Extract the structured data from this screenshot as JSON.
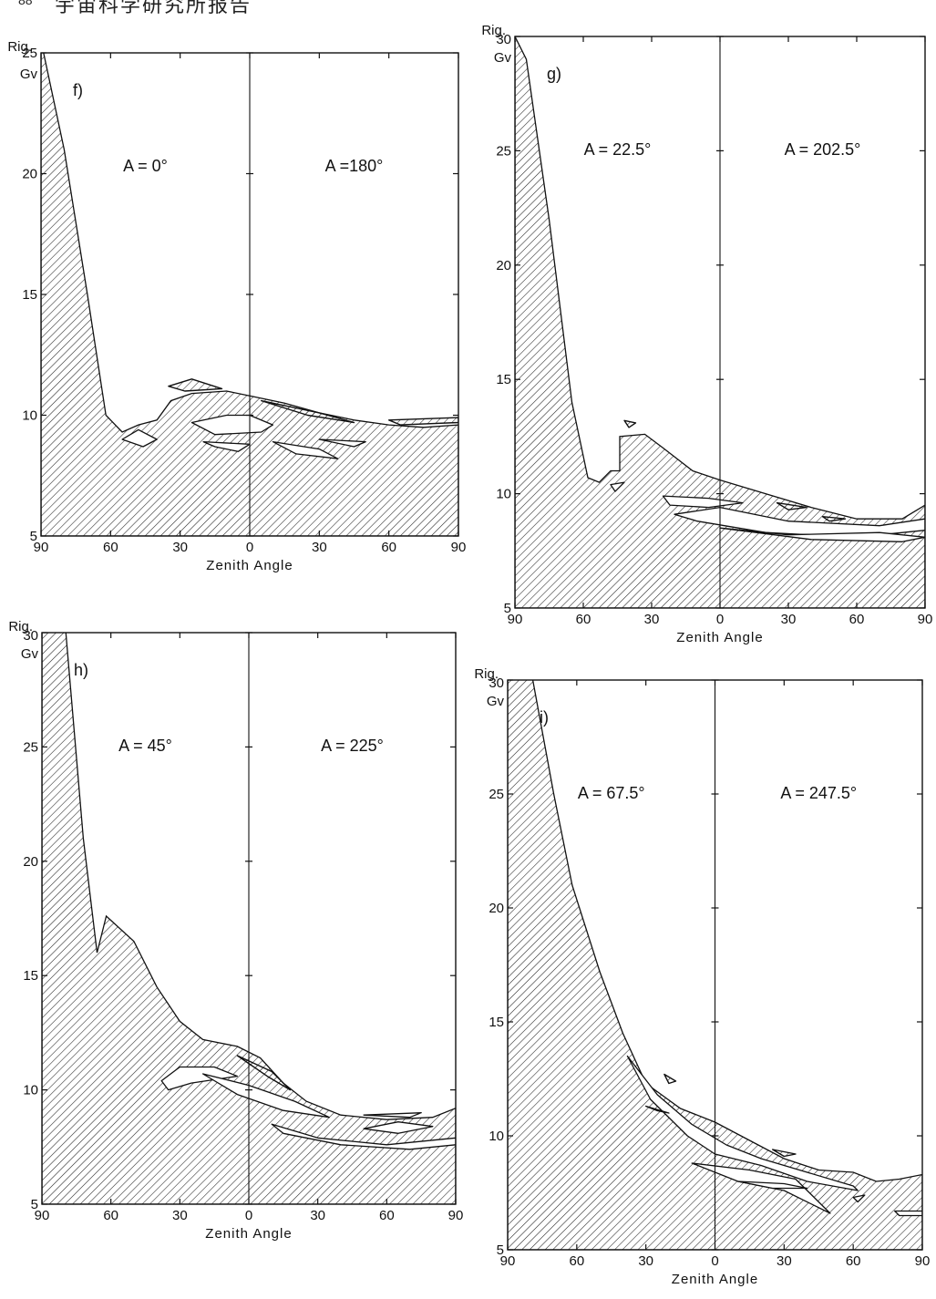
{
  "page": {
    "number": "88",
    "header": "宇宙科学研究所报告"
  },
  "colors": {
    "ink": "#111111",
    "hatch": "#222222",
    "paper": "#ffffff"
  },
  "chart_data": [
    {
      "id": "f",
      "panel_label": "f)",
      "type": "area",
      "ylabel_top": "Rig.",
      "ylabel_unit": "Gv",
      "ylim": [
        5,
        25
      ],
      "yticks": [
        5,
        10,
        15,
        20,
        25
      ],
      "xlim": [
        -90,
        90
      ],
      "xtick_labels": [
        "90",
        "60",
        "30",
        "0",
        "30",
        "60",
        "90"
      ],
      "xlabel": "Zenith Angle",
      "left_azimuth": "A = 0°",
      "right_azimuth": "A =180°",
      "cutoff": [
        [
          -90,
          25.5
        ],
        [
          -80,
          21
        ],
        [
          -70,
          15
        ],
        [
          -62,
          10
        ],
        [
          -55,
          9.3
        ],
        [
          -48,
          9.6
        ],
        [
          -40,
          9.8
        ],
        [
          -34,
          10.6
        ],
        [
          -25,
          10.9
        ],
        [
          -10,
          11
        ],
        [
          0,
          10.8
        ],
        [
          15,
          10.5
        ],
        [
          30,
          10.1
        ],
        [
          45,
          9.8
        ],
        [
          60,
          9.6
        ],
        [
          75,
          9.5
        ],
        [
          90,
          9.6
        ]
      ],
      "islands": [
        [
          [
            -55,
            9.0
          ],
          [
            -48,
            9.4
          ],
          [
            -40,
            9.0
          ],
          [
            -46,
            8.7
          ]
        ],
        [
          [
            -25,
            9.7
          ],
          [
            -10,
            10
          ],
          [
            0,
            10
          ],
          [
            10,
            9.6
          ],
          [
            5,
            9.3
          ],
          [
            -15,
            9.2
          ]
        ],
        [
          [
            -20,
            8.9
          ],
          [
            0,
            8.8
          ],
          [
            -5,
            8.5
          ],
          [
            -15,
            8.7
          ]
        ],
        [
          [
            10,
            8.9
          ],
          [
            30,
            8.6
          ],
          [
            38,
            8.2
          ],
          [
            20,
            8.4
          ]
        ],
        [
          [
            30,
            9.0
          ],
          [
            50,
            8.9
          ],
          [
            45,
            8.7
          ]
        ]
      ],
      "ribbons": [
        [
          [
            -35,
            11.2
          ],
          [
            -25,
            11.5
          ],
          [
            -12,
            11.1
          ],
          [
            -28,
            11.0
          ]
        ],
        [
          [
            5,
            10.6
          ],
          [
            30,
            10.1
          ],
          [
            45,
            9.7
          ],
          [
            25,
            10.0
          ]
        ],
        [
          [
            60,
            9.8
          ],
          [
            90,
            9.9
          ],
          [
            90,
            9.7
          ],
          [
            65,
            9.6
          ]
        ]
      ]
    },
    {
      "id": "g",
      "panel_label": "g)",
      "type": "area",
      "ylabel_top": "Rig.",
      "ylabel_unit": "Gv",
      "ylim": [
        5,
        30
      ],
      "yticks": [
        5,
        10,
        15,
        20,
        25,
        30
      ],
      "xlim": [
        -90,
        90
      ],
      "xtick_labels": [
        "90",
        "60",
        "30",
        "0",
        "30",
        "60",
        "90"
      ],
      "xlabel": "Zenith Angle",
      "left_azimuth": "A = 22.5°",
      "right_azimuth": "A = 202.5°",
      "cutoff": [
        [
          -90,
          30
        ],
        [
          -85,
          29
        ],
        [
          -75,
          22
        ],
        [
          -65,
          14
        ],
        [
          -58,
          10.7
        ],
        [
          -53,
          10.5
        ],
        [
          -48,
          11
        ],
        [
          -44,
          11
        ],
        [
          -44,
          12.5
        ],
        [
          -33,
          12.6
        ],
        [
          -25,
          12
        ],
        [
          -12,
          11
        ],
        [
          0,
          10.6
        ],
        [
          20,
          10
        ],
        [
          40,
          9.4
        ],
        [
          60,
          8.9
        ],
        [
          80,
          8.9
        ],
        [
          90,
          9.5
        ]
      ],
      "islands": [
        [
          [
            -48,
            10.4
          ],
          [
            -42,
            10.5
          ],
          [
            -46,
            10.1
          ]
        ],
        [
          [
            -25,
            9.9
          ],
          [
            -5,
            9.8
          ],
          [
            10,
            9.6
          ],
          [
            -5,
            9.4
          ],
          [
            -22,
            9.5
          ]
        ],
        [
          [
            -20,
            9.1
          ],
          [
            0,
            9.4
          ],
          [
            30,
            8.8
          ],
          [
            70,
            8.6
          ],
          [
            90,
            8.9
          ],
          [
            90,
            8.4
          ],
          [
            60,
            8.1
          ],
          [
            20,
            8.3
          ],
          [
            -10,
            8.8
          ]
        ],
        [
          [
            0,
            8.5
          ],
          [
            40,
            8.0
          ],
          [
            80,
            7.9
          ],
          [
            90,
            8.1
          ],
          [
            70,
            8.3
          ],
          [
            30,
            8.2
          ]
        ]
      ],
      "ribbons": [
        [
          [
            -42,
            13.2
          ],
          [
            -37,
            13.1
          ],
          [
            -40,
            12.9
          ]
        ],
        [
          [
            25,
            9.6
          ],
          [
            38,
            9.4
          ],
          [
            30,
            9.3
          ]
        ],
        [
          [
            45,
            9.0
          ],
          [
            55,
            8.9
          ],
          [
            48,
            8.8
          ]
        ]
      ]
    },
    {
      "id": "h",
      "panel_label": "h)",
      "type": "area",
      "ylabel_top": "Rig.",
      "ylabel_unit": "Gv",
      "ylim": [
        5,
        30
      ],
      "yticks": [
        5,
        10,
        15,
        20,
        25,
        30
      ],
      "xlim": [
        -90,
        90
      ],
      "xtick_labels": [
        "90",
        "60",
        "30",
        "0",
        "30",
        "60",
        "90"
      ],
      "xlabel": "Zenith Angle",
      "left_azimuth": "A = 45°",
      "right_azimuth": "A = 225°",
      "cutoff": [
        [
          -90,
          30.5
        ],
        [
          -80,
          30.5
        ],
        [
          -72,
          21
        ],
        [
          -66,
          16
        ],
        [
          -62,
          17.6
        ],
        [
          -50,
          16.5
        ],
        [
          -40,
          14.5
        ],
        [
          -30,
          13
        ],
        [
          -20,
          12.2
        ],
        [
          -5,
          11.9
        ],
        [
          5,
          11.4
        ],
        [
          15,
          10.3
        ],
        [
          25,
          9.5
        ],
        [
          40,
          8.9
        ],
        [
          60,
          8.7
        ],
        [
          80,
          8.8
        ],
        [
          90,
          9.2
        ]
      ],
      "islands": [
        [
          [
            -38,
            10.4
          ],
          [
            -30,
            11
          ],
          [
            -15,
            11
          ],
          [
            -5,
            10.6
          ],
          [
            -25,
            10.3
          ],
          [
            -35,
            10.0
          ]
        ],
        [
          [
            -20,
            10.7
          ],
          [
            0,
            10.2
          ],
          [
            20,
            9.5
          ],
          [
            35,
            8.8
          ],
          [
            15,
            9.1
          ],
          [
            -5,
            9.8
          ]
        ],
        [
          [
            10,
            8.5
          ],
          [
            30,
            7.9
          ],
          [
            60,
            7.6
          ],
          [
            90,
            7.9
          ],
          [
            90,
            7.6
          ],
          [
            70,
            7.4
          ],
          [
            40,
            7.6
          ],
          [
            15,
            8.1
          ]
        ],
        [
          [
            50,
            8.3
          ],
          [
            65,
            8.6
          ],
          [
            80,
            8.4
          ],
          [
            65,
            8.1
          ]
        ],
        [
          [
            50,
            8.9
          ],
          [
            75,
            9.0
          ],
          [
            70,
            8.8
          ]
        ]
      ],
      "ribbons": [
        [
          [
            -5,
            11.5
          ],
          [
            10,
            10.8
          ],
          [
            18,
            10
          ],
          [
            8,
            10.6
          ]
        ]
      ]
    },
    {
      "id": "i",
      "panel_label": "i)",
      "type": "area",
      "ylabel_top": "Rig.",
      "ylabel_unit": "Gv",
      "ylim": [
        5,
        30
      ],
      "yticks": [
        5,
        10,
        15,
        20,
        25,
        30
      ],
      "xlim": [
        -90,
        90
      ],
      "xtick_labels": [
        "90",
        "60",
        "30",
        "0",
        "30",
        "60",
        "90"
      ],
      "xlabel": "Zenith Angle",
      "left_azimuth": "A = 67.5°",
      "right_azimuth": "A = 247.5°",
      "cutoff": [
        [
          -90,
          30
        ],
        [
          -80,
          30.5
        ],
        [
          -70,
          25
        ],
        [
          -62,
          21
        ],
        [
          -50,
          17.2
        ],
        [
          -40,
          14.5
        ],
        [
          -30,
          12.3
        ],
        [
          -15,
          11.2
        ],
        [
          0,
          10.6
        ],
        [
          15,
          9.8
        ],
        [
          30,
          9.0
        ],
        [
          45,
          8.5
        ],
        [
          60,
          8.4
        ],
        [
          70,
          8.0
        ],
        [
          80,
          8.1
        ],
        [
          90,
          8.3
        ]
      ],
      "islands": [
        [
          [
            -38,
            13.5
          ],
          [
            -25,
            11.8
          ],
          [
            -10,
            10.5
          ],
          [
            5,
            9.6
          ],
          [
            20,
            9.0
          ],
          [
            40,
            8.4
          ],
          [
            60,
            7.8
          ],
          [
            62,
            7.6
          ],
          [
            40,
            8.0
          ],
          [
            20,
            8.7
          ],
          [
            0,
            9.2
          ],
          [
            -12,
            10
          ],
          [
            -28,
            11.6
          ]
        ],
        [
          [
            -10,
            8.8
          ],
          [
            15,
            8.5
          ],
          [
            35,
            8.1
          ],
          [
            50,
            6.6
          ],
          [
            30,
            7.6
          ],
          [
            10,
            8.0
          ]
        ],
        [
          [
            10,
            8.0
          ],
          [
            30,
            7.9
          ],
          [
            40,
            7.7
          ],
          [
            25,
            7.7
          ]
        ],
        [
          [
            60,
            7.3
          ],
          [
            65,
            7.4
          ],
          [
            62,
            7.1
          ]
        ],
        [
          [
            78,
            6.7
          ],
          [
            90,
            6.7
          ],
          [
            90,
            6.5
          ],
          [
            80,
            6.5
          ]
        ]
      ],
      "ribbons": [
        [
          [
            -30,
            11.3
          ],
          [
            -20,
            11.0
          ],
          [
            -25,
            11.1
          ]
        ],
        [
          [
            -22,
            12.7
          ],
          [
            -17,
            12.4
          ],
          [
            -20,
            12.3
          ]
        ],
        [
          [
            25,
            9.4
          ],
          [
            35,
            9.2
          ],
          [
            30,
            9.1
          ]
        ]
      ]
    }
  ]
}
